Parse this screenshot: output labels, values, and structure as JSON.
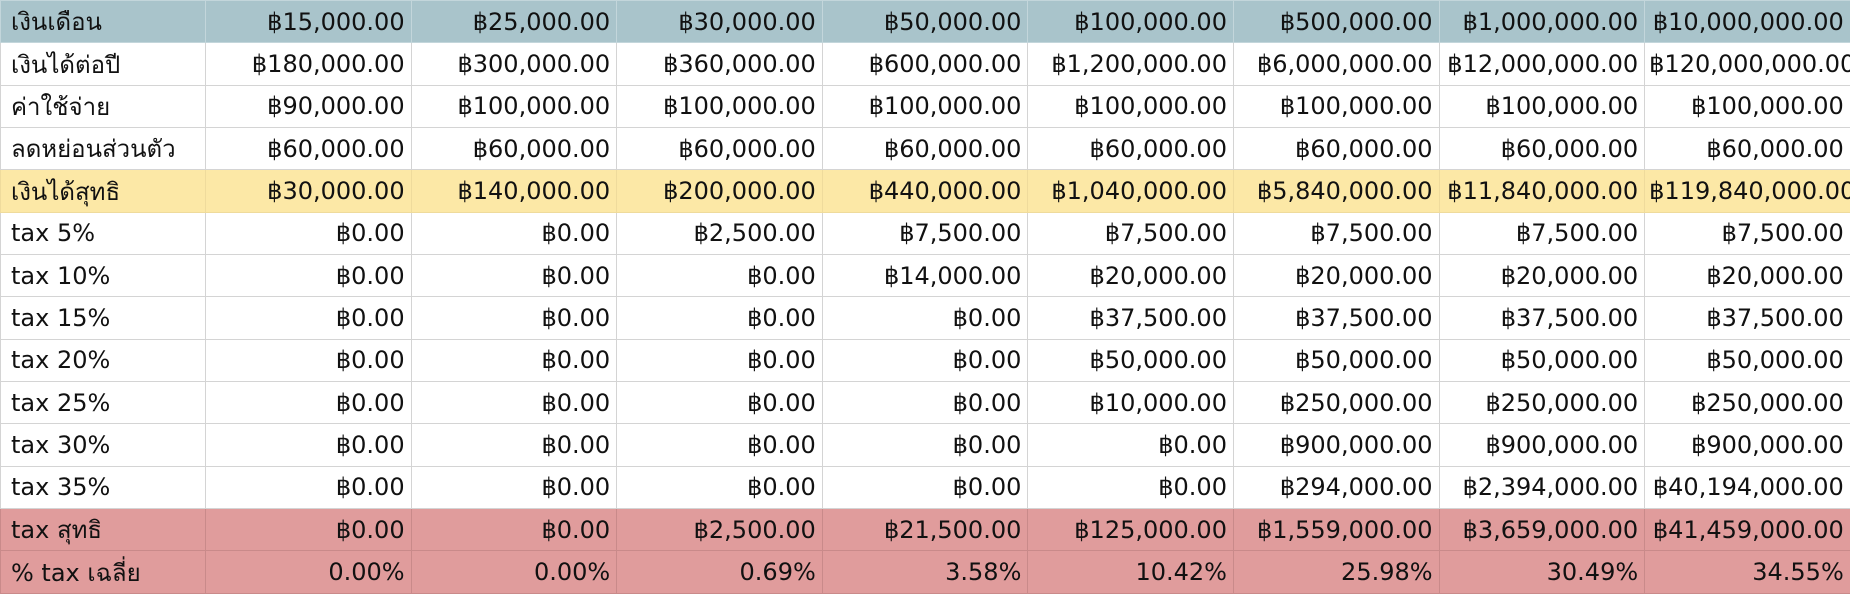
{
  "sheet": {
    "rows": [
      {
        "label": "เงินเดือน",
        "style": "header",
        "values": [
          "฿15,000.00",
          "฿25,000.00",
          "฿30,000.00",
          "฿50,000.00",
          "฿100,000.00",
          "฿500,000.00",
          "฿1,000,000.00",
          "฿10,000,000.00"
        ]
      },
      {
        "label": "เงินได้ต่อปี",
        "style": "plain",
        "values": [
          "฿180,000.00",
          "฿300,000.00",
          "฿360,000.00",
          "฿600,000.00",
          "฿1,200,000.00",
          "฿6,000,000.00",
          "฿12,000,000.00",
          "฿120,000,000.00"
        ]
      },
      {
        "label": "ค่าใช้จ่าย",
        "style": "plain",
        "values": [
          "฿90,000.00",
          "฿100,000.00",
          "฿100,000.00",
          "฿100,000.00",
          "฿100,000.00",
          "฿100,000.00",
          "฿100,000.00",
          "฿100,000.00"
        ]
      },
      {
        "label": "ลดหย่อนส่วนตัว",
        "style": "plain",
        "values": [
          "฿60,000.00",
          "฿60,000.00",
          "฿60,000.00",
          "฿60,000.00",
          "฿60,000.00",
          "฿60,000.00",
          "฿60,000.00",
          "฿60,000.00"
        ]
      },
      {
        "label": "เงินได้สุทธิ",
        "style": "net",
        "values": [
          "฿30,000.00",
          "฿140,000.00",
          "฿200,000.00",
          "฿440,000.00",
          "฿1,040,000.00",
          "฿5,840,000.00",
          "฿11,840,000.00",
          "฿119,840,000.00"
        ]
      },
      {
        "label": "tax 5%",
        "style": "plain",
        "values": [
          "฿0.00",
          "฿0.00",
          "฿2,500.00",
          "฿7,500.00",
          "฿7,500.00",
          "฿7,500.00",
          "฿7,500.00",
          "฿7,500.00"
        ]
      },
      {
        "label": "tax 10%",
        "style": "plain",
        "values": [
          "฿0.00",
          "฿0.00",
          "฿0.00",
          "฿14,000.00",
          "฿20,000.00",
          "฿20,000.00",
          "฿20,000.00",
          "฿20,000.00"
        ]
      },
      {
        "label": "tax 15%",
        "style": "plain",
        "values": [
          "฿0.00",
          "฿0.00",
          "฿0.00",
          "฿0.00",
          "฿37,500.00",
          "฿37,500.00",
          "฿37,500.00",
          "฿37,500.00"
        ]
      },
      {
        "label": "tax 20%",
        "style": "plain",
        "values": [
          "฿0.00",
          "฿0.00",
          "฿0.00",
          "฿0.00",
          "฿50,000.00",
          "฿50,000.00",
          "฿50,000.00",
          "฿50,000.00"
        ]
      },
      {
        "label": "tax 25%",
        "style": "plain",
        "values": [
          "฿0.00",
          "฿0.00",
          "฿0.00",
          "฿0.00",
          "฿10,000.00",
          "฿250,000.00",
          "฿250,000.00",
          "฿250,000.00"
        ]
      },
      {
        "label": "tax 30%",
        "style": "plain",
        "values": [
          "฿0.00",
          "฿0.00",
          "฿0.00",
          "฿0.00",
          "฿0.00",
          "฿900,000.00",
          "฿900,000.00",
          "฿900,000.00"
        ]
      },
      {
        "label": "tax 35%",
        "style": "plain",
        "values": [
          "฿0.00",
          "฿0.00",
          "฿0.00",
          "฿0.00",
          "฿0.00",
          "฿294,000.00",
          "฿2,394,000.00",
          "฿40,194,000.00"
        ]
      },
      {
        "label": "tax สุทธิ",
        "style": "total",
        "values": [
          "฿0.00",
          "฿0.00",
          "฿2,500.00",
          "฿21,500.00",
          "฿125,000.00",
          "฿1,559,000.00",
          "฿3,659,000.00",
          "฿41,459,000.00"
        ]
      },
      {
        "label": "% tax เฉลี่ย",
        "style": "total",
        "values": [
          "0.00%",
          "0.00%",
          "0.69%",
          "3.58%",
          "10.42%",
          "25.98%",
          "30.49%",
          "34.55%"
        ]
      }
    ],
    "colors": {
      "header": "#a9c4cb",
      "net": "#fce8a6",
      "total": "#e09c9c",
      "grid": "#d4d4d4"
    }
  }
}
